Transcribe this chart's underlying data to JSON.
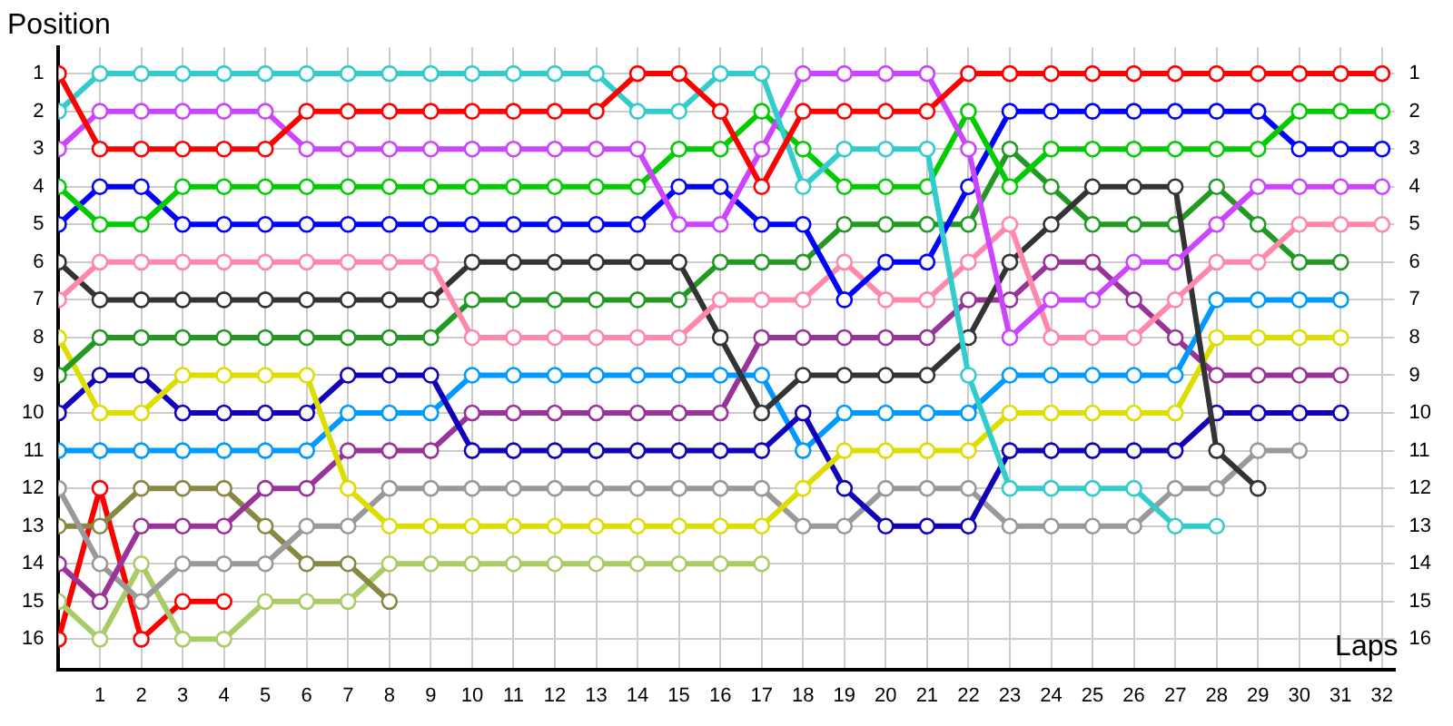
{
  "chart_data": {
    "type": "line",
    "xlabel": "Laps",
    "ylabel": "Position",
    "marker": "circle",
    "line_style": "solid",
    "grid": true,
    "x": [
      0,
      1,
      2,
      3,
      4,
      5,
      6,
      7,
      8,
      9,
      10,
      11,
      12,
      13,
      14,
      15,
      16,
      17,
      18,
      19,
      20,
      21,
      22,
      23,
      24,
      25,
      26,
      27,
      28,
      29,
      30,
      31,
      32
    ],
    "xlim": [
      0,
      32.3
    ],
    "xticks": [
      1,
      2,
      3,
      4,
      5,
      6,
      7,
      8,
      9,
      10,
      11,
      12,
      13,
      14,
      15,
      16,
      17,
      18,
      19,
      20,
      21,
      22,
      23,
      24,
      25,
      26,
      27,
      28,
      29,
      30,
      31,
      32
    ],
    "ylim": [
      16.8,
      0.3
    ],
    "yticks": [
      1,
      2,
      3,
      4,
      5,
      6,
      7,
      8,
      9,
      10,
      11,
      12,
      13,
      14,
      15,
      16
    ],
    "y2lim": [
      16.8,
      0.3
    ],
    "y2ticks": [
      1,
      2,
      3,
      4,
      5,
      6,
      7,
      8,
      9,
      10,
      11,
      12,
      13,
      14,
      15,
      16
    ],
    "series": [
      {
        "color": "#ff0000",
        "values": [
          1,
          3,
          3,
          3,
          3,
          3,
          2,
          2,
          2,
          2,
          2,
          2,
          2,
          2,
          1,
          1,
          2,
          4,
          2,
          2,
          2,
          2,
          1,
          1,
          1,
          1,
          1,
          1,
          1,
          1,
          1,
          1,
          1
        ]
      },
      {
        "color": "#33cccc",
        "values": [
          2,
          1,
          1,
          1,
          1,
          1,
          1,
          1,
          1,
          1,
          1,
          1,
          1,
          1,
          2,
          2,
          1,
          1,
          4,
          3,
          3,
          3,
          9,
          12,
          12,
          12,
          12,
          13,
          13,
          null,
          null,
          null,
          null
        ]
      },
      {
        "color": "#cc44ff",
        "values": [
          3,
          2,
          2,
          2,
          2,
          2,
          3,
          3,
          3,
          3,
          3,
          3,
          3,
          3,
          3,
          5,
          5,
          3,
          1,
          1,
          1,
          1,
          3,
          8,
          7,
          7,
          6,
          6,
          5,
          4,
          4,
          4,
          4
        ]
      },
      {
        "color": "#00cc00",
        "values": [
          4,
          5,
          5,
          4,
          4,
          4,
          4,
          4,
          4,
          4,
          4,
          4,
          4,
          4,
          4,
          3,
          3,
          2,
          3,
          4,
          4,
          4,
          2,
          4,
          3,
          3,
          3,
          3,
          3,
          3,
          2,
          2,
          2
        ]
      },
      {
        "color": "#0000ff",
        "values": [
          5,
          4,
          4,
          5,
          5,
          5,
          5,
          5,
          5,
          5,
          5,
          5,
          5,
          5,
          5,
          4,
          4,
          5,
          5,
          7,
          6,
          6,
          4,
          2,
          2,
          2,
          2,
          2,
          2,
          2,
          3,
          3,
          3
        ]
      },
      {
        "color": "#ff88aa",
        "values": [
          7,
          6,
          6,
          6,
          6,
          6,
          6,
          6,
          6,
          6,
          8,
          8,
          8,
          8,
          8,
          8,
          7,
          7,
          7,
          6,
          7,
          7,
          6,
          5,
          8,
          8,
          8,
          7,
          6,
          6,
          5,
          5,
          5
        ]
      },
      {
        "color": "#333333",
        "values": [
          6,
          7,
          7,
          7,
          7,
          7,
          7,
          7,
          7,
          7,
          6,
          6,
          6,
          6,
          6,
          6,
          8,
          10,
          9,
          9,
          9,
          9,
          8,
          6,
          5,
          4,
          4,
          4,
          11,
          12,
          null,
          null,
          null
        ]
      },
      {
        "color": "#229922",
        "values": [
          9,
          8,
          8,
          8,
          8,
          8,
          8,
          8,
          8,
          8,
          7,
          7,
          7,
          7,
          7,
          7,
          6,
          6,
          6,
          5,
          5,
          5,
          5,
          3,
          4,
          5,
          5,
          5,
          4,
          5,
          6,
          6,
          null
        ]
      },
      {
        "color": "#dddd00",
        "values": [
          8,
          10,
          10,
          9,
          9,
          9,
          9,
          12,
          13,
          13,
          13,
          13,
          13,
          13,
          13,
          13,
          13,
          13,
          12,
          11,
          11,
          11,
          11,
          10,
          10,
          10,
          10,
          10,
          8,
          8,
          8,
          8,
          null
        ]
      },
      {
        "color": "#1100bb",
        "values": [
          10,
          9,
          9,
          10,
          10,
          10,
          10,
          9,
          9,
          9,
          11,
          11,
          11,
          11,
          11,
          11,
          11,
          11,
          10,
          12,
          13,
          13,
          13,
          11,
          11,
          11,
          11,
          11,
          10,
          10,
          10,
          10,
          null
        ]
      },
      {
        "color": "#0099ff",
        "values": [
          11,
          11,
          11,
          11,
          11,
          11,
          11,
          10,
          10,
          10,
          9,
          9,
          9,
          9,
          9,
          9,
          9,
          9,
          11,
          10,
          10,
          10,
          10,
          9,
          9,
          9,
          9,
          9,
          7,
          7,
          7,
          7,
          null
        ]
      },
      {
        "color": "#993399",
        "values": [
          14,
          15,
          13,
          13,
          13,
          12,
          12,
          11,
          11,
          11,
          10,
          10,
          10,
          10,
          10,
          10,
          10,
          8,
          8,
          8,
          8,
          8,
          7,
          7,
          6,
          6,
          7,
          8,
          9,
          9,
          9,
          9,
          null
        ]
      },
      {
        "color": "#999999",
        "values": [
          12,
          14,
          15,
          14,
          14,
          14,
          13,
          13,
          12,
          12,
          12,
          12,
          12,
          12,
          12,
          12,
          12,
          12,
          13,
          13,
          12,
          12,
          12,
          13,
          13,
          13,
          13,
          12,
          12,
          11,
          11,
          null,
          null
        ]
      },
      {
        "color": "#888844",
        "values": [
          13,
          13,
          12,
          12,
          12,
          13,
          14,
          14,
          15,
          null,
          null,
          null,
          null,
          null,
          null,
          null,
          null,
          null,
          null,
          null,
          null,
          null,
          null,
          null,
          null,
          null,
          null,
          null,
          null,
          null,
          null,
          null,
          null
        ]
      },
      {
        "color": "#aacc66",
        "values": [
          15,
          16,
          14,
          16,
          16,
          15,
          15,
          15,
          14,
          14,
          14,
          14,
          14,
          14,
          14,
          14,
          14,
          14,
          null,
          null,
          null,
          null,
          null,
          null,
          null,
          null,
          null,
          null,
          null,
          null,
          null,
          null,
          null
        ]
      },
      {
        "color": "#ff0000",
        "values": [
          16,
          12,
          16,
          15,
          15,
          null,
          null,
          null,
          null,
          null,
          null,
          null,
          null,
          null,
          null,
          null,
          null,
          null,
          null,
          null,
          null,
          null,
          null,
          null,
          null,
          null,
          null,
          null,
          null,
          null,
          null,
          null,
          null
        ]
      }
    ]
  }
}
